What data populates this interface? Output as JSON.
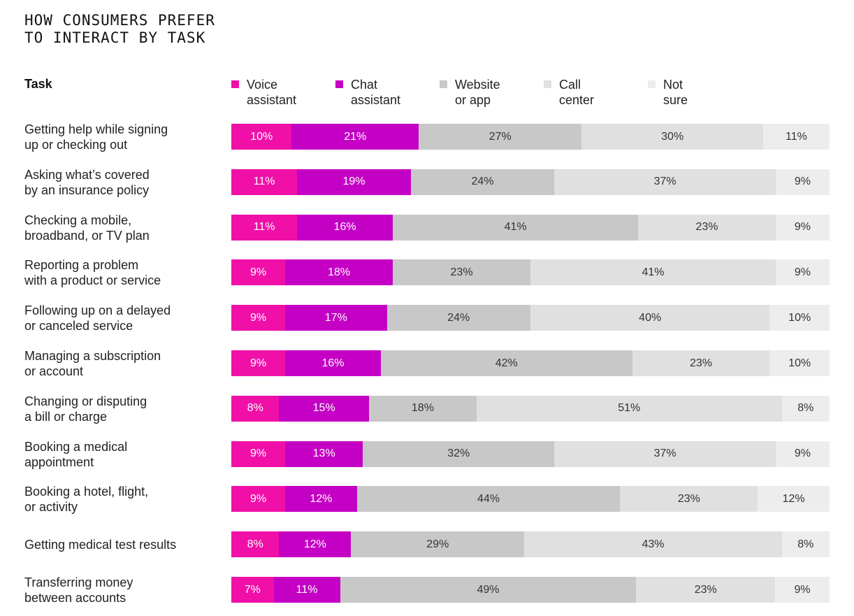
{
  "chart_data": {
    "type": "bar",
    "orientation": "horizontal",
    "stacked": true,
    "title": "HOW CONSUMERS PREFER\nTO INTERACT BY TASK",
    "category_header": "Task",
    "legend_position": "top",
    "grid": false,
    "categories": [
      "Getting help while signing\nup or checking out",
      "Asking what’s covered\nby an insurance policy",
      "Checking a mobile,\nbroadband, or TV plan",
      "Reporting a problem\nwith a product or service",
      "Following up on a delayed\nor canceled service",
      "Managing a subscription\nor account",
      "Changing or disputing\na bill or charge",
      "Booking a medical\nappointment",
      "Booking a hotel, flight,\nor activity",
      "Getting medical test results",
      "Transferring money\nbetween accounts"
    ],
    "series": [
      {
        "name": "Voice\nassistant",
        "color": "#f010a8",
        "values": [
          10,
          11,
          11,
          9,
          9,
          9,
          8,
          9,
          9,
          8,
          7
        ]
      },
      {
        "name": "Chat\nassistant",
        "color": "#c400c4",
        "values": [
          21,
          19,
          16,
          18,
          17,
          16,
          15,
          13,
          12,
          12,
          11
        ]
      },
      {
        "name": "Website\nor app",
        "color": "#c8c8c8",
        "values": [
          27,
          24,
          41,
          23,
          24,
          42,
          18,
          32,
          44,
          29,
          49
        ]
      },
      {
        "name": "Call\ncenter",
        "color": "#e0e0e0",
        "values": [
          30,
          37,
          23,
          41,
          40,
          23,
          51,
          37,
          23,
          43,
          23
        ]
      },
      {
        "name": "Not\nsure",
        "color": "#ededed",
        "values": [
          11,
          9,
          9,
          9,
          10,
          10,
          8,
          9,
          12,
          8,
          9
        ]
      }
    ],
    "unit": "%"
  }
}
